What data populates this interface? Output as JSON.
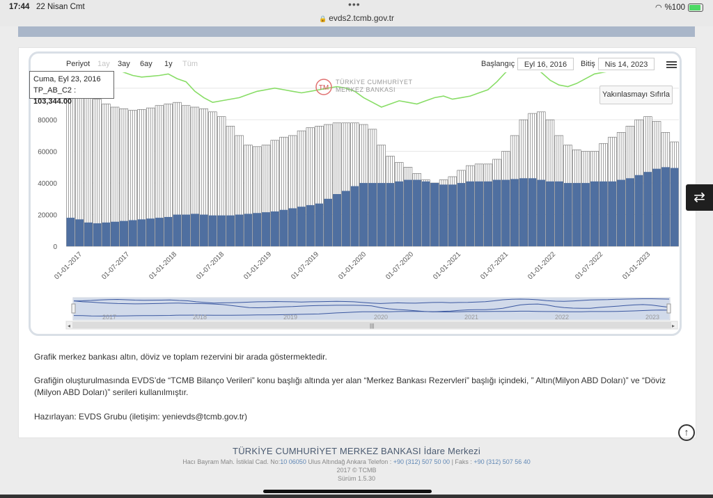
{
  "status": {
    "time": "17:44",
    "date": "22 Nisan Cmt",
    "url": "evds2.tcmb.gov.tr",
    "battery": "%100",
    "battery_level": 1.0
  },
  "range_selector": {
    "label": "Periyot",
    "buttons": [
      "1ay",
      "3ay",
      "6ay",
      "1y",
      "Tüm"
    ],
    "enabled": [
      false,
      true,
      true,
      true,
      false
    ],
    "start_label": "Başlangıç",
    "start_value": "Eyl 16, 2016",
    "end_label": "Bitiş",
    "end_value": "Nis 14, 2023"
  },
  "tooltip": {
    "date": "Cuma, Eyl 23, 2016",
    "series": "TP_AB_C2",
    "value": "103,344.00"
  },
  "reset_zoom_label": "Yakınlasmayı Sıfırla",
  "logo_text": [
    "TÜRKİYE CUMHURİYET",
    "MERKEZ BANKASI"
  ],
  "chart_data": {
    "type": "bar",
    "ylim": [
      0,
      110000
    ],
    "yticks": [
      0,
      20000,
      40000,
      60000,
      80000,
      100000
    ],
    "xticks": [
      "01-01-2017",
      "01-07-2017",
      "01-01-2018",
      "01-07-2018",
      "01-01-2019",
      "01-07-2019",
      "01-01-2020",
      "01-07-2020",
      "01-01-2021",
      "01-07-2021",
      "01-01-2022",
      "01-07-2022",
      "01-01-2023"
    ],
    "navigator_years": [
      "2017",
      "2018",
      "2019",
      "2020",
      "2021",
      "2022",
      "2023"
    ],
    "series": [
      {
        "name": "TP_AB_C2",
        "color": "#ffffff",
        "stroke": "#555555",
        "values": [
          103344,
          98000,
          96000,
          93000,
          90000,
          88000,
          87000,
          86000,
          86500,
          87500,
          89000,
          90000,
          91000,
          89000,
          88000,
          87000,
          85000,
          82000,
          76000,
          70000,
          64000,
          63000,
          64000,
          67000,
          69000,
          70000,
          73000,
          75000,
          76000,
          77000,
          78000,
          78000,
          78000,
          77000,
          74000,
          64000,
          57000,
          53000,
          50000,
          46000,
          42000,
          40000,
          42000,
          44000,
          48000,
          51000,
          52000,
          52000,
          55000,
          60000,
          70000,
          80000,
          84000,
          85000,
          80000,
          70000,
          64000,
          61000,
          60000,
          60000,
          65000,
          69000,
          72000,
          76000,
          80000,
          82000,
          79000,
          72000,
          66000
        ]
      },
      {
        "name": "TP_AB_C1",
        "color": "#4f6fa0",
        "values": [
          18000,
          17000,
          15000,
          14500,
          15000,
          15500,
          16000,
          16500,
          17000,
          17500,
          18000,
          18500,
          20000,
          20000,
          20500,
          20000,
          19500,
          19500,
          19500,
          20000,
          20500,
          21000,
          21500,
          22000,
          23000,
          24000,
          25000,
          26000,
          27000,
          30000,
          33000,
          35000,
          38000,
          40000,
          40000,
          40000,
          40000,
          41000,
          42000,
          42000,
          41000,
          40000,
          39000,
          39000,
          40000,
          41000,
          41000,
          41000,
          42000,
          42000,
          42500,
          43000,
          43000,
          42000,
          41000,
          41000,
          40000,
          40000,
          40000,
          41000,
          41000,
          41000,
          42000,
          43000,
          45000,
          47000,
          49000,
          50000,
          49500
        ]
      },
      {
        "name": "TP_AB_C3",
        "color": "#88dd66",
        "values": [
          103344,
          104000,
          106000,
          109000,
          111000,
          112000,
          110000,
          108000,
          107000,
          107500,
          108000,
          109000,
          106000,
          104000,
          98000,
          94000,
          91000,
          92000,
          93000,
          94000,
          96000,
          98000,
          99000,
          100000,
          99000,
          98000,
          97000,
          98000,
          99000,
          100000,
          101000,
          100000,
          98000,
          94000,
          91000,
          88000,
          90000,
          92000,
          91000,
          90000,
          92000,
          94000,
          95000,
          93000,
          94000,
          95000,
          97000,
          99000,
          104000,
          110000,
          113000,
          114000,
          113000,
          110000,
          105000,
          102000,
          101000,
          103000,
          106000,
          109000,
          110000,
          111000,
          113000,
          114000,
          115000,
          116000,
          116000,
          115000,
          114000
        ]
      }
    ]
  },
  "description": {
    "p1": "Grafik merkez bankası altın, döviz ve toplam rezervini bir arada göstermektedir.",
    "p2_line1": "Grafiğin oluşturulmasında EVDS’de “TCMB Bilanço Verileri” konu başlığı altında yer alan “Merkez Bankası Rezervleri” başlığı içindeki,  ” Altın(Milyon ABD Doları)” ve “Döviz",
    "p2_line2": "(Milyon ABD Doları)” serileri kullanılmıştır.",
    "p3": "Hazırlayan: EVDS Grubu  (iletişim: yenievds@tcmb.gov.tr)"
  },
  "footer": {
    "title": "TÜRKİYE CUMHURİYET MERKEZ BANKASI İdare Merkezi",
    "address_a": "Hacı Bayram Mah. İstiklal Cad. No:",
    "address_no": "10 06050",
    "address_b": " Ulus Altındağ Ankara Telefon : ",
    "phone": "+90 (312) 507 50 00",
    "fax_label": " | Faks : ",
    "fax": "+90 (312) 507 56 40",
    "copyright": "2017 © TCMB",
    "version": "Sürüm 1.5.30"
  }
}
